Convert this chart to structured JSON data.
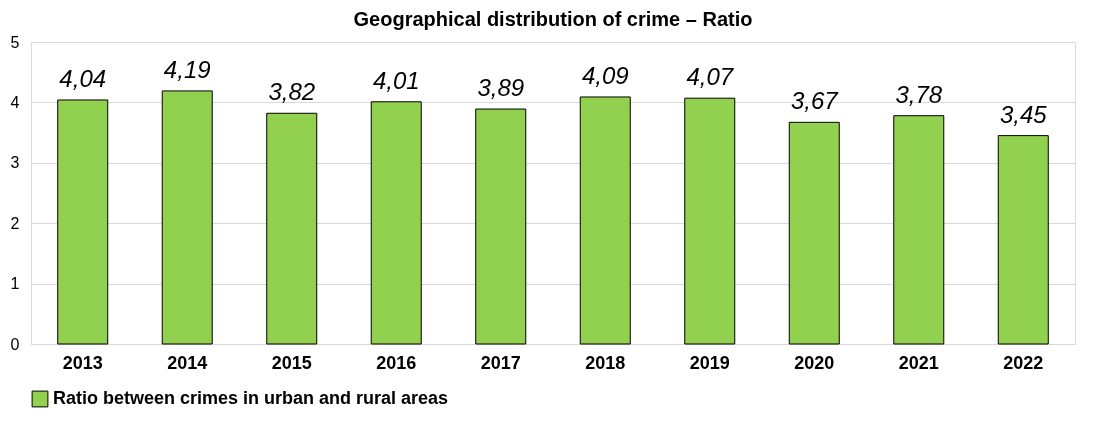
{
  "chart_data": {
    "type": "bar",
    "title": "Geographical distribution of crime – Ratio",
    "categories": [
      "2013",
      "2014",
      "2015",
      "2016",
      "2017",
      "2018",
      "2019",
      "2020",
      "2021",
      "2022"
    ],
    "series": [
      {
        "name": "Ratio between crimes in urban and rural areas",
        "color": "#92d050",
        "values": [
          4.04,
          4.19,
          3.82,
          4.01,
          3.89,
          4.09,
          4.07,
          3.67,
          3.78,
          3.45
        ],
        "value_labels": [
          "4,04",
          "4,19",
          "3,82",
          "4,01",
          "3,89",
          "4,09",
          "4,07",
          "3,67",
          "3,78",
          "3,45"
        ]
      }
    ],
    "ylim": [
      0,
      5
    ],
    "yticks": [
      0,
      1,
      2,
      3,
      4,
      5
    ],
    "grid": "y",
    "legend": "bottom"
  }
}
